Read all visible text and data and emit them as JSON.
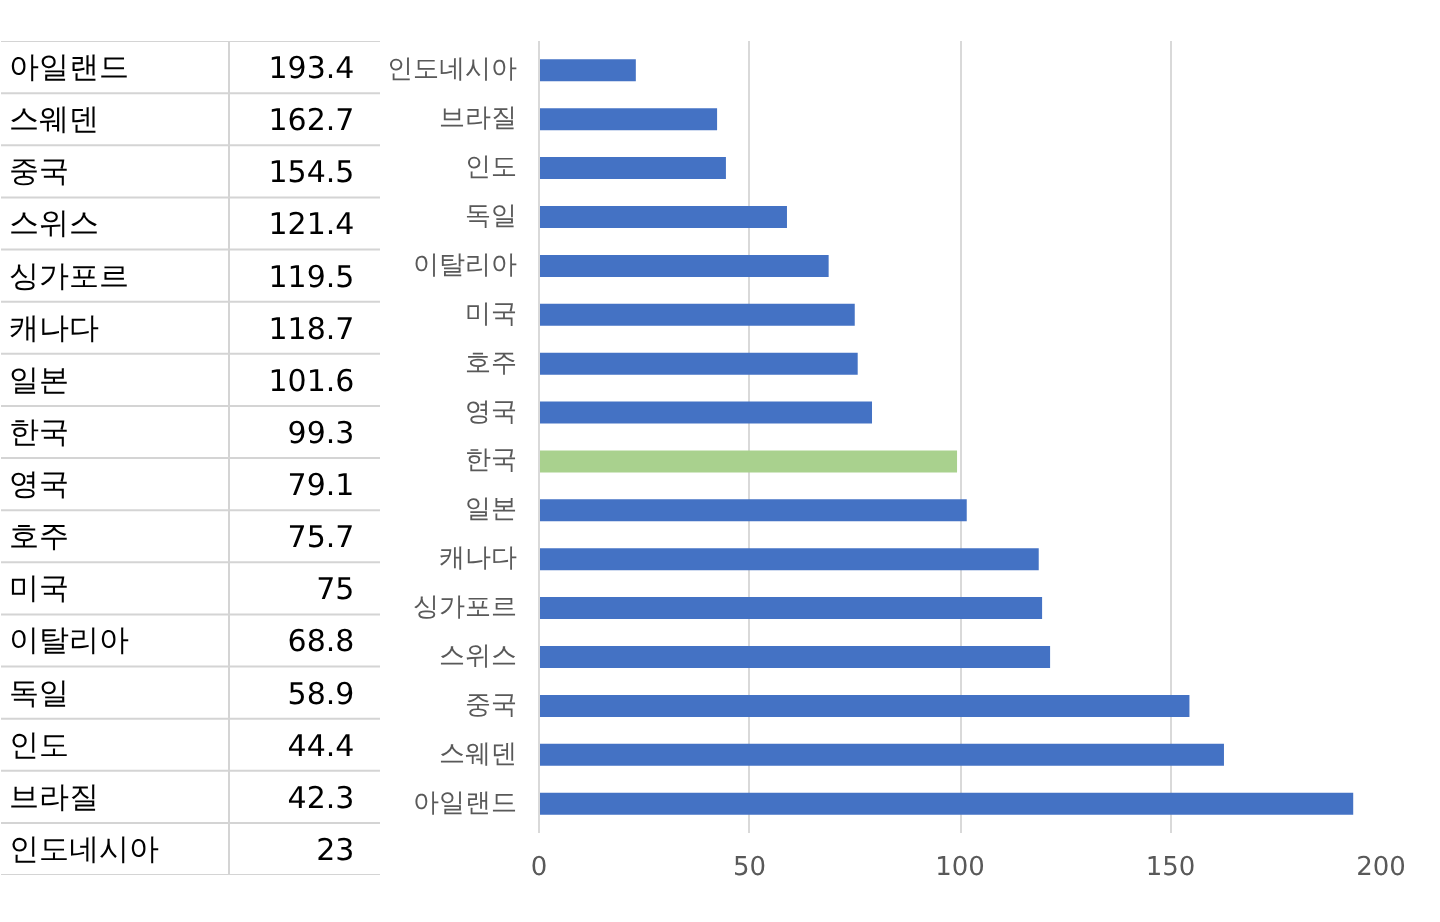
{
  "chart_data": [
    {
      "type": "other",
      "categories": [
        "아일랜드",
        "스웨덴",
        "중국",
        "스위스",
        "싱가포르",
        "캐나다",
        "일본",
        "한국",
        "영국",
        "호주",
        "미국",
        "이탈리아",
        "독일",
        "인도",
        "브라질",
        "인도네시아"
      ],
      "values": [
        193.4,
        162.7,
        154.5,
        121.4,
        119.5,
        118.7,
        101.6,
        99.3,
        79.1,
        75.7,
        75,
        68.8,
        58.9,
        44.4,
        42.3,
        23
      ],
      "data_labels": true
    },
    {
      "type": "bar",
      "orientation": "horizontal",
      "categories": [
        "인도네시아",
        "브라질",
        "인도",
        "독일",
        "이탈리아",
        "미국",
        "호주",
        "영국",
        "한국",
        "일본",
        "캐나다",
        "싱가포르",
        "스위스",
        "중국",
        "스웨덴",
        "아일랜드"
      ],
      "values": [
        23,
        42.3,
        44.4,
        58.9,
        68.8,
        75,
        75.7,
        79.1,
        99.3,
        101.6,
        118.7,
        119.5,
        121.4,
        154.5,
        162.7,
        193.4
      ],
      "colors": [
        "#4472c4",
        "#4472c4",
        "#4472c4",
        "#4472c4",
        "#4472c4",
        "#4472c4",
        "#4472c4",
        "#4472c4",
        "#a9d18e",
        "#4472c4",
        "#4472c4",
        "#4472c4",
        "#4472c4",
        "#4472c4",
        "#4472c4",
        "#4472c4"
      ],
      "xlim": [
        0,
        200
      ],
      "xticks": [
        0,
        50,
        100,
        150,
        200
      ],
      "grid": "x"
    }
  ]
}
